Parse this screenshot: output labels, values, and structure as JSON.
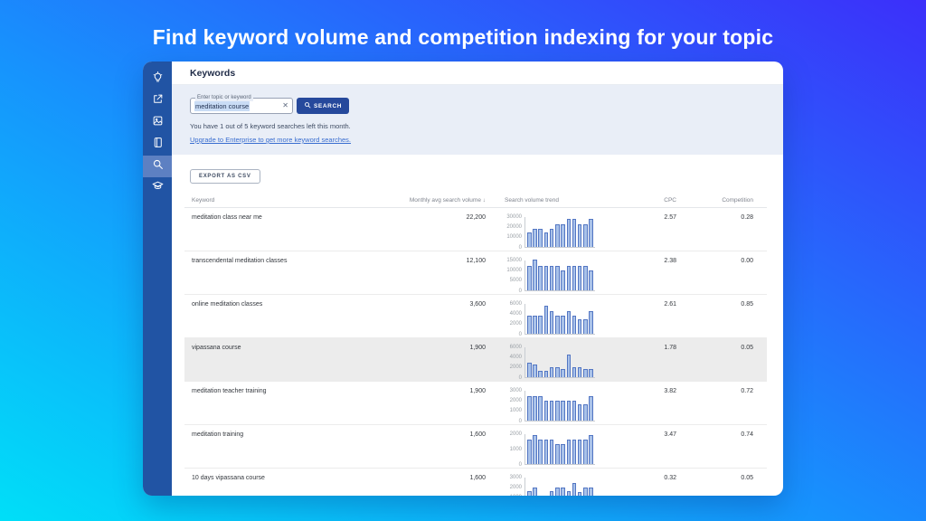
{
  "hero": {
    "title": "Find keyword volume and competition indexing for your topic"
  },
  "window": {
    "title": "Keywords",
    "sidebar": {
      "items": [
        {
          "icon": "lightbulb-icon",
          "active": false
        },
        {
          "icon": "share-document-icon",
          "active": false
        },
        {
          "icon": "image-icon",
          "active": false
        },
        {
          "icon": "notebook-icon",
          "active": false
        },
        {
          "icon": "search-icon",
          "active": true
        },
        {
          "icon": "graduation-cap-icon",
          "active": false
        }
      ]
    },
    "search": {
      "input_label": "Enter topic or keyword",
      "input_value": "meditation course",
      "clear_icon": "✕",
      "button_label": "SEARCH",
      "quota_text": "You have 1 out of 5 keyword searches left this month.",
      "upgrade_link": "Upgrade to Enterprise to get more keyword searches."
    },
    "export_button": "EXPORT AS CSV",
    "table": {
      "headers": {
        "keyword": "Keyword",
        "volume": "Monthly avg search volume",
        "sort_arrow": "↓",
        "trend": "Search volume trend",
        "cpc": "CPC",
        "competition": "Competition"
      },
      "rows": [
        {
          "keyword": "meditation class near me",
          "volume": "22,200",
          "cpc": "2.57",
          "competition": "0.28",
          "highlighted": false,
          "chart": {
            "type": "bar",
            "ymax": 30000,
            "yticks": [
              0,
              10000,
              20000,
              30000
            ],
            "values": [
              14000,
              18000,
              18000,
              14000,
              18000,
              22000,
              22000,
              27000,
              27000,
              22000,
              22000,
              27000
            ]
          }
        },
        {
          "keyword": "transcendental meditation classes",
          "volume": "12,100",
          "cpc": "2.38",
          "competition": "0.00",
          "highlighted": false,
          "chart": {
            "type": "bar",
            "ymax": 15000,
            "yticks": [
              0,
              5000,
              10000,
              15000
            ],
            "values": [
              12100,
              14800,
              12100,
              12100,
              12100,
              12100,
              9900,
              12100,
              12100,
              12100,
              12100,
              9900
            ]
          }
        },
        {
          "keyword": "online meditation classes",
          "volume": "3,600",
          "cpc": "2.61",
          "competition": "0.85",
          "highlighted": false,
          "chart": {
            "type": "bar",
            "ymax": 6000,
            "yticks": [
              0,
              2000,
              4000,
              6000
            ],
            "values": [
              3600,
              3600,
              3600,
              5400,
              4400,
              3600,
              3600,
              4400,
              3600,
              2900,
              2900,
              4400
            ]
          }
        },
        {
          "keyword": "vipassana course",
          "volume": "1,900",
          "cpc": "1.78",
          "competition": "0.05",
          "highlighted": true,
          "chart": {
            "type": "bar",
            "ymax": 6000,
            "yticks": [
              0,
              2000,
              4000,
              6000
            ],
            "values": [
              2900,
              2400,
              1300,
              1200,
              1900,
              1900,
              1600,
              4400,
              1900,
              1900,
              1600,
              1600
            ]
          }
        },
        {
          "keyword": "meditation teacher training",
          "volume": "1,900",
          "cpc": "3.82",
          "competition": "0.72",
          "highlighted": false,
          "chart": {
            "type": "bar",
            "ymax": 3000,
            "yticks": [
              0,
              1000,
              2000,
              3000
            ],
            "values": [
              2400,
              2400,
              2400,
              1900,
              1900,
              1900,
              1900,
              1900,
              1900,
              1600,
              1600,
              2400
            ]
          }
        },
        {
          "keyword": "meditation training",
          "volume": "1,600",
          "cpc": "3.47",
          "competition": "0.74",
          "highlighted": false,
          "chart": {
            "type": "bar",
            "ymax": 2000,
            "yticks": [
              0,
              1000,
              2000
            ],
            "values": [
              1600,
              1900,
              1600,
              1600,
              1600,
              1300,
              1300,
              1600,
              1600,
              1600,
              1600,
              1900
            ]
          }
        },
        {
          "keyword": "10 days vipassana course",
          "volume": "1,600",
          "cpc": "0.32",
          "competition": "0.05",
          "highlighted": false,
          "chart": {
            "type": "bar",
            "ymax": 3000,
            "yticks": [
              0,
              1000,
              2000,
              3000
            ],
            "values": [
              1600,
              1900,
              1000,
              900,
              1600,
              1900,
              1900,
              1600,
              2400,
              1500,
              1900,
              1900
            ]
          }
        }
      ]
    }
  },
  "colors": {
    "gradient_start": "#00dff8",
    "gradient_mid": "#1792fd",
    "gradient_end": "#3c2ffa",
    "sidebar": "#2154a4",
    "sidebar_active": "#5d80c2",
    "panel": "#e9eef7",
    "button_primary": "#26499c",
    "link": "#3a6ed0",
    "bar_fill": "#a9c2e9",
    "bar_stroke": "#5376c3",
    "row_highlight": "#ececec"
  }
}
